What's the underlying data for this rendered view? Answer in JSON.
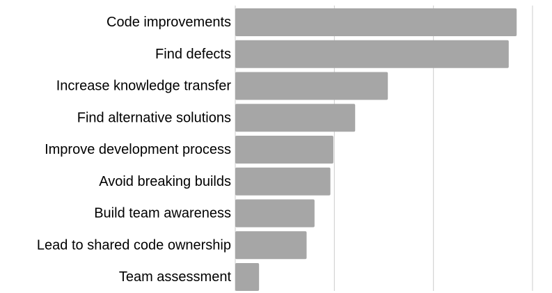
{
  "chart_data": {
    "type": "bar",
    "orientation": "horizontal",
    "categories": [
      "Code improvements",
      "Find defects",
      "Increase knowledge transfer",
      "Find alternative solutions",
      "Improve development process",
      "Avoid breaking builds",
      "Build team awareness",
      "Lead to shared code ownership",
      "Team assessment"
    ],
    "values": [
      284,
      276,
      154,
      121,
      99,
      96,
      80,
      72,
      24
    ],
    "xlim": [
      0,
      300
    ],
    "x_gridlines": [
      100,
      200,
      300
    ],
    "title": "",
    "xlabel": "",
    "ylabel": "",
    "grid": true,
    "legend": "none",
    "colors": {
      "bar": "#a6a6a6",
      "grid": "#cccccc",
      "text": "#000000"
    }
  }
}
